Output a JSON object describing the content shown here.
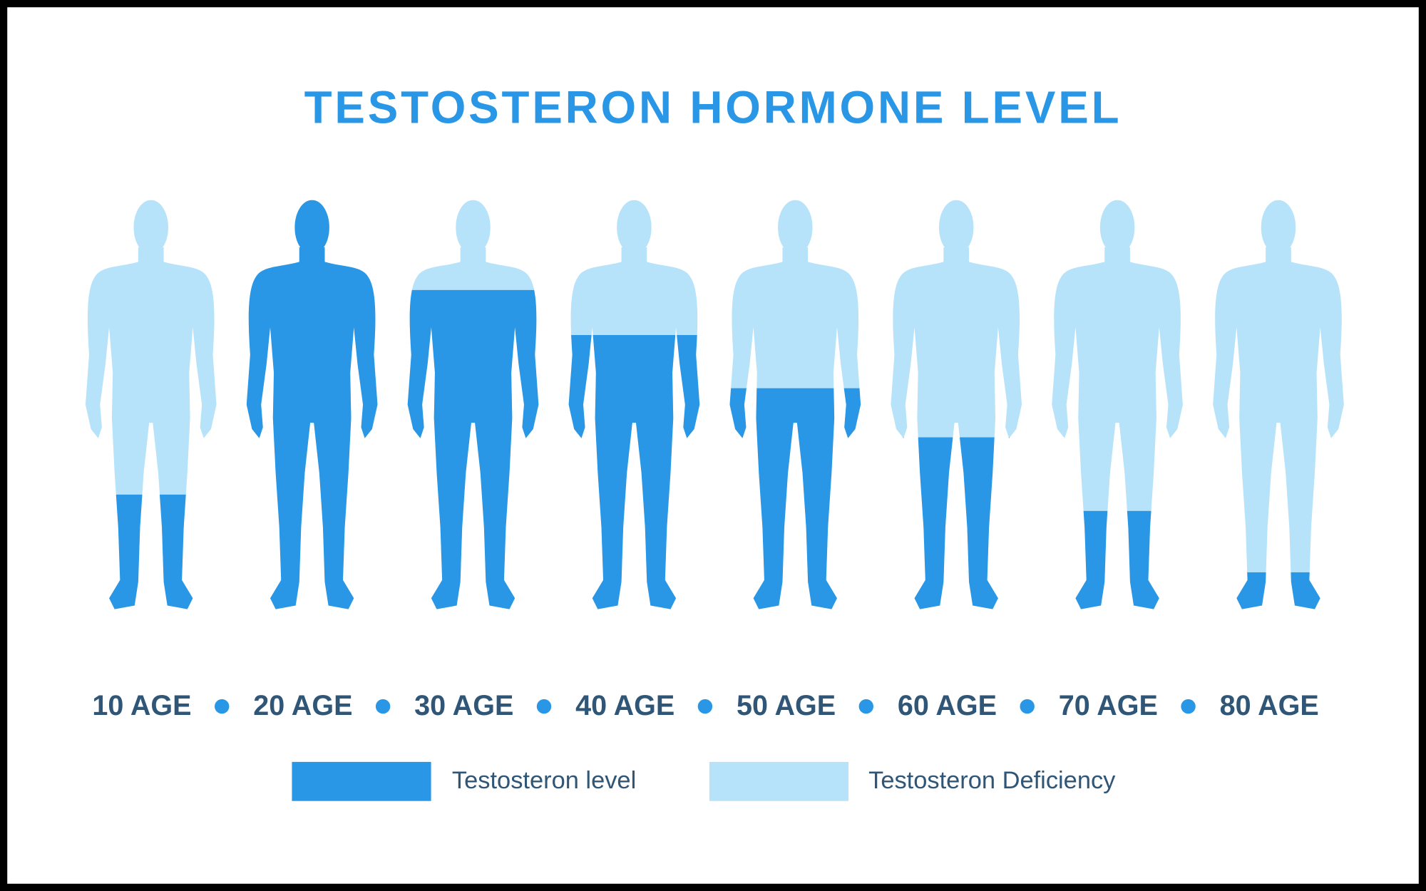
{
  "chart_data": {
    "type": "pictogram",
    "title": "TESTOSTERON HORMONE LEVEL",
    "categories": [
      "10 AGE",
      "20 AGE",
      "30 AGE",
      "40 AGE",
      "50 AGE",
      "60 AGE",
      "70 AGE",
      "80 AGE"
    ],
    "series": [
      {
        "name": "Testosteron level",
        "color": "#2a97e6",
        "values": [
          28,
          100,
          78,
          67,
          54,
          42,
          24,
          9
        ]
      }
    ],
    "background": {
      "name": "Testosteron Deficiency",
      "color": "#b6e3fa"
    },
    "ylim": [
      0,
      100
    ]
  }
}
